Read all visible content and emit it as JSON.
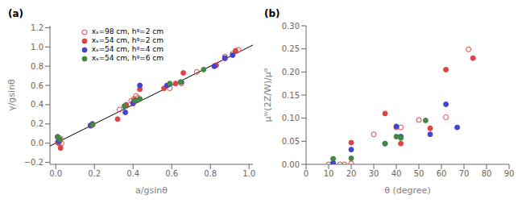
{
  "chart_data": [
    {
      "type": "scatter",
      "title": "(a)",
      "x_label": "a/gsinθ",
      "y_label": "γ/gsinθ",
      "xlim": [
        -0.03,
        1.02
      ],
      "ylim": [
        -0.22,
        1.22
      ],
      "xticks": [
        {
          "value": 0,
          "label": "0.0"
        },
        0.2,
        0.4,
        0.6,
        0.8,
        {
          "value": 1.0,
          "label": "1.0"
        }
      ],
      "yticks": [
        {
          "value": -0.2,
          "label": "−0.2"
        },
        {
          "value": 0,
          "label": "0.0"
        },
        0.2,
        0.4,
        0.6,
        0.8,
        {
          "value": 1.0,
          "label": "1.0"
        },
        1.2
      ],
      "grid": false,
      "legend": "upper left",
      "series": [
        {
          "type": "line",
          "color": "#000000",
          "x": [
            -0.05,
            1.05
          ],
          "values": [
            -0.05,
            1.05
          ]
        },
        {
          "name": "xₛ=98 cm, hᵍ=2 cm",
          "type": "scatter",
          "marker": "circle_open",
          "color": "#d44",
          "x": [
            0.01,
            0.02,
            0.025,
            0.03,
            0.19,
            0.33,
            0.39,
            0.405,
            0.415,
            0.425,
            0.59,
            0.65,
            0.73,
            0.82,
            0.875,
            0.915,
            0.945
          ],
          "values": [
            0.065,
            0.02,
            0.05,
            0.0,
            0.19,
            0.35,
            0.44,
            0.46,
            0.49,
            0.47,
            0.57,
            0.62,
            0.74,
            0.8,
            0.9,
            0.93,
            0.97
          ]
        },
        {
          "name": "xₛ=54 cm, hᵍ=2 cm",
          "type": "scatter",
          "marker": "circle",
          "color": "#d44",
          "x": [
            0.01,
            0.015,
            0.02,
            0.025,
            0.18,
            0.32,
            0.365,
            0.4,
            0.41,
            0.435,
            0.56,
            0.62,
            0.66,
            0.83,
            0.875,
            0.93
          ],
          "values": [
            0.01,
            0.0,
            0.04,
            -0.05,
            0.18,
            0.25,
            0.4,
            0.41,
            0.45,
            0.56,
            0.57,
            0.62,
            0.73,
            0.81,
            0.88,
            0.96
          ]
        },
        {
          "name": "xₛ=54 cm, hᵍ=4 cm",
          "type": "scatter",
          "marker": "circle",
          "color": "#44c",
          "x": [
            0.01,
            0.015,
            0.02,
            0.18,
            0.19,
            0.36,
            0.4,
            0.41,
            0.435,
            0.575,
            0.65,
            0.82,
            0.875,
            0.915
          ],
          "values": [
            0.065,
            0.02,
            0.04,
            0.185,
            0.2,
            0.32,
            0.42,
            0.44,
            0.6,
            0.6,
            0.635,
            0.8,
            0.885,
            0.915
          ]
        },
        {
          "name": "xₛ=54 cm, hᵍ=6 cm",
          "type": "scatter",
          "marker": "circle",
          "color": "#484",
          "x": [
            0.01,
            0.02,
            0.19,
            0.355,
            0.41,
            0.435,
            0.59,
            0.645,
            0.765
          ],
          "values": [
            0.065,
            0.04,
            0.19,
            0.385,
            0.44,
            0.46,
            0.62,
            0.635,
            0.765
          ]
        }
      ]
    },
    {
      "type": "scatter",
      "title": "(b)",
      "x_label": "θ (degree)",
      "y_label": "μᵂ(2Z/W)/μᴮ",
      "xlim": [
        0,
        90
      ],
      "ylim": [
        0,
        0.3
      ],
      "xticks": [
        0,
        10,
        20,
        30,
        40,
        50,
        60,
        70,
        80,
        90
      ],
      "yticks": [
        {
          "value": 0,
          "label": "0.00"
        },
        0.05,
        {
          "value": 0.1,
          "label": "0.10"
        },
        0.15,
        {
          "value": 0.2,
          "label": "0.20"
        },
        0.25,
        {
          "value": 0.3,
          "label": "0.30"
        }
      ],
      "grid": false,
      "series": [
        {
          "type": "scatter",
          "marker": "circle_open",
          "color": "#d44",
          "x": [
            10,
            12,
            15,
            17,
            20,
            30,
            40,
            42,
            50,
            62,
            72
          ],
          "values": [
            0.0,
            0.0,
            0.0,
            0.0,
            0.002,
            0.065,
            0.08,
            0.08,
            0.096,
            0.102,
            0.249
          ]
        },
        {
          "type": "scatter",
          "marker": "circle",
          "color": "#d44",
          "x": [
            12,
            20,
            35,
            42,
            55,
            62,
            74
          ],
          "values": [
            0.0,
            0.047,
            0.11,
            0.045,
            0.078,
            0.205,
            0.23
          ]
        },
        {
          "type": "scatter",
          "marker": "circle",
          "color": "#44c",
          "x": [
            12,
            20,
            35,
            40,
            42,
            55,
            62,
            67
          ],
          "values": [
            0.003,
            0.032,
            0.045,
            0.082,
            0.06,
            0.065,
            0.13,
            0.08
          ]
        },
        {
          "type": "scatter",
          "marker": "circle",
          "color": "#484",
          "x": [
            12,
            20,
            35,
            40,
            42,
            53
          ],
          "values": [
            0.012,
            0.013,
            0.045,
            0.06,
            0.057,
            0.095
          ]
        }
      ]
    }
  ]
}
